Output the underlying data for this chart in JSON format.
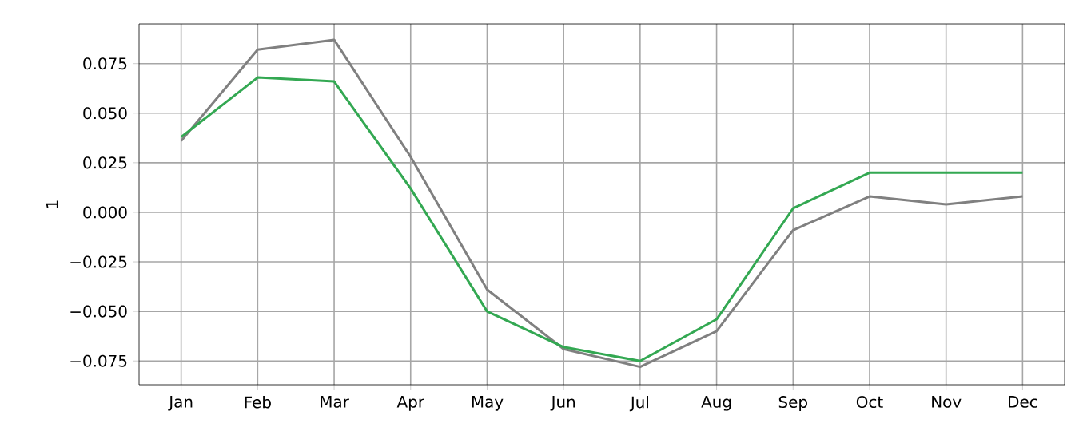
{
  "chart_data": {
    "type": "line",
    "ylabel": "1",
    "categories": [
      "Jan",
      "Feb",
      "Mar",
      "Apr",
      "May",
      "Jun",
      "Jul",
      "Aug",
      "Sep",
      "Oct",
      "Nov",
      "Dec"
    ],
    "series": [
      {
        "color": "#808080",
        "values": [
          0.036,
          0.082,
          0.087,
          0.028,
          -0.039,
          -0.069,
          -0.078,
          -0.06,
          -0.009,
          0.008,
          0.004,
          0.008
        ]
      },
      {
        "color": "#33a852",
        "values": [
          0.038,
          0.068,
          0.066,
          0.012,
          -0.05,
          -0.068,
          -0.075,
          -0.054,
          0.002,
          0.02,
          0.02,
          0.02
        ]
      }
    ],
    "ylim": [
      -0.087,
      0.095
    ],
    "yticks": [
      {
        "value": -0.075,
        "label": "−0.075"
      },
      {
        "value": -0.05,
        "label": "−0.050"
      },
      {
        "value": -0.025,
        "label": "−0.025"
      },
      {
        "value": 0,
        "label": "0.000"
      },
      {
        "value": 0.025,
        "label": "0.025"
      },
      {
        "value": 0.05,
        "label": "0.050"
      },
      {
        "value": 0.075,
        "label": "0.075"
      }
    ],
    "grid": true
  }
}
